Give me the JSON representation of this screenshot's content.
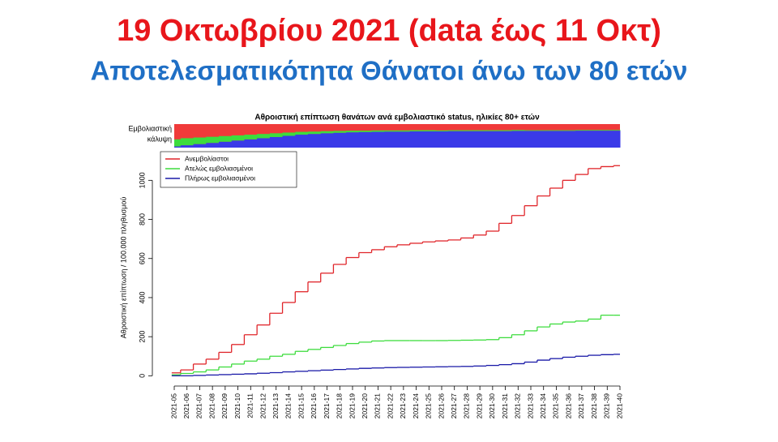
{
  "slide": {
    "title": "19 Οκτωβρίου 2021 (data έως 11 Οκτ)",
    "subtitle": "Αποτελεσματικότητα Θάνατοι άνω των 80 ετών"
  },
  "chart_data": {
    "type": "line",
    "step": true,
    "title": "Αθροιστική επίπτωση θανάτων ανά εμβολιαστικό status, ηλικίες 80+ ετών",
    "y_label": "Αθροιστική επίπτωση / 100.000 πληθυσμού",
    "categories": [
      "2021-05",
      "2021-06",
      "2021-07",
      "2021-08",
      "2021-09",
      "2021-10",
      "2021-11",
      "2021-12",
      "2021-13",
      "2021-14",
      "2021-15",
      "2021-16",
      "2021-17",
      "2021-18",
      "2021-19",
      "2021-20",
      "2021-21",
      "2021-22",
      "2021-23",
      "2021-24",
      "2021-25",
      "2021-26",
      "2021-27",
      "2021-28",
      "2021-29",
      "2021-30",
      "2021-31",
      "2021-32",
      "2021-33",
      "2021-34",
      "2021-35",
      "2021-36",
      "2021-37",
      "2021-38",
      "2021-39",
      "2021-40"
    ],
    "series": [
      {
        "name": "Ανεμβολίαστοι",
        "color": "#e0252a",
        "values": [
          15,
          30,
          60,
          85,
          120,
          160,
          210,
          260,
          320,
          375,
          430,
          480,
          525,
          570,
          605,
          630,
          645,
          660,
          670,
          678,
          685,
          690,
          695,
          705,
          720,
          740,
          780,
          820,
          870,
          920,
          960,
          1000,
          1030,
          1060,
          1070,
          1075
        ]
      },
      {
        "name": "Ατελώς εμβολιασμένοι",
        "color": "#3ddc3d",
        "values": [
          5,
          12,
          20,
          30,
          45,
          60,
          75,
          85,
          100,
          110,
          125,
          135,
          145,
          155,
          165,
          172,
          178,
          180,
          180,
          180,
          180,
          180,
          181,
          182,
          183,
          185,
          195,
          210,
          230,
          250,
          265,
          275,
          280,
          290,
          310,
          310
        ]
      },
      {
        "name": "Πλήρως εμβολιασμένοι",
        "color": "#1a1aa8",
        "values": [
          0,
          0,
          2,
          4,
          6,
          8,
          10,
          13,
          16,
          20,
          23,
          26,
          29,
          32,
          35,
          38,
          40,
          42,
          43,
          44,
          45,
          46,
          47,
          48,
          50,
          53,
          57,
          62,
          70,
          80,
          88,
          95,
          100,
          105,
          108,
          110
        ]
      }
    ],
    "ylim": [
      -40,
      1130
    ],
    "yticks": [
      0,
      200,
      400,
      600,
      800,
      1000
    ],
    "coverage_label": [
      "Εμβολιαστική",
      "κάλυψη"
    ],
    "coverage_colors": {
      "unvaccinated": "#f03a3a",
      "partial": "#3ddc3d",
      "full": "#3a3ae8"
    },
    "coverage_full": [
      5,
      10,
      15,
      20,
      25,
      30,
      35,
      40,
      45,
      50,
      55,
      58,
      61,
      63,
      65,
      66,
      67,
      68,
      68,
      69,
      69,
      69,
      70,
      70,
      70,
      70,
      70,
      71,
      71,
      71,
      71,
      71,
      72,
      72,
      72,
      72
    ],
    "coverage_partial": [
      30,
      30,
      28,
      26,
      24,
      22,
      20,
      18,
      16,
      14,
      12,
      10,
      9,
      8,
      7,
      6,
      6,
      5,
      5,
      5,
      5,
      4,
      4,
      4,
      4,
      4,
      4,
      4,
      3,
      3,
      3,
      3,
      3,
      3,
      3,
      3
    ]
  }
}
